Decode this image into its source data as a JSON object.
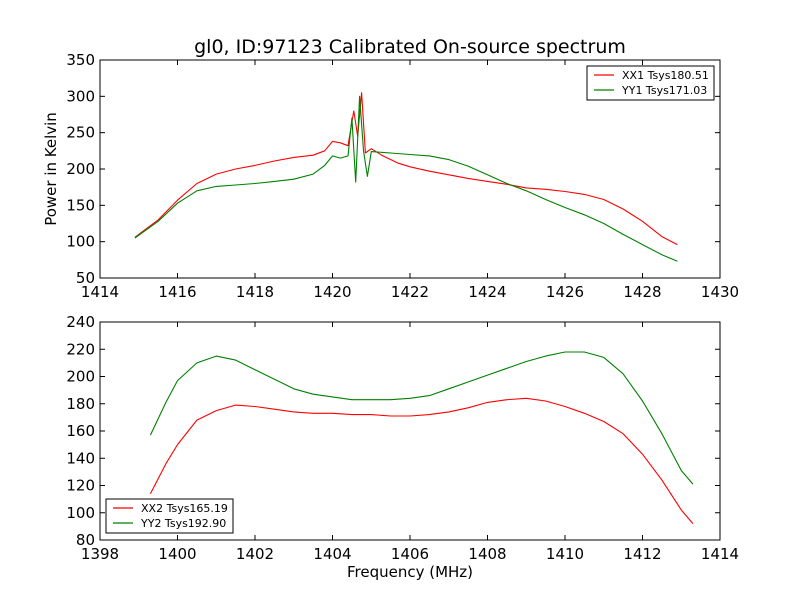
{
  "chart_data": [
    {
      "type": "line",
      "title": "gl0, ID:97123 Calibrated On-source spectrum",
      "xlabel": "",
      "ylabel": "Power in Kelvin",
      "xlim": [
        1414,
        1430
      ],
      "ylim": [
        50,
        350
      ],
      "xticks": [
        "1414",
        "1416",
        "1418",
        "1420",
        "1422",
        "1424",
        "1426",
        "1428",
        "1430"
      ],
      "yticks": [
        "50",
        "100",
        "150",
        "200",
        "250",
        "300",
        "350"
      ],
      "grid": false,
      "legend_position": "top-right",
      "series": [
        {
          "name": "XX1 Tsys180.51",
          "color": "#ff0000",
          "x": [
            1414.9,
            1415.5,
            1416.0,
            1416.5,
            1417.0,
            1417.5,
            1418.0,
            1418.5,
            1419.0,
            1419.5,
            1419.8,
            1420.0,
            1420.2,
            1420.4,
            1420.55,
            1420.65,
            1420.75,
            1420.85,
            1421.0,
            1421.3,
            1421.7,
            1422.0,
            1422.5,
            1423.0,
            1423.5,
            1424.0,
            1424.5,
            1425.0,
            1425.5,
            1426.0,
            1426.5,
            1427.0,
            1427.5,
            1428.0,
            1428.5,
            1428.9
          ],
          "y": [
            106,
            130,
            157,
            180,
            193,
            200,
            205,
            211,
            216,
            219,
            225,
            238,
            236,
            232,
            280,
            245,
            305,
            222,
            228,
            218,
            208,
            203,
            197,
            192,
            187,
            183,
            179,
            174,
            172,
            169,
            165,
            158,
            145,
            128,
            107,
            96
          ]
        },
        {
          "name": "YY1 Tsys171.03",
          "color": "#008000",
          "x": [
            1414.9,
            1415.5,
            1416.0,
            1416.5,
            1417.0,
            1417.5,
            1418.0,
            1418.5,
            1419.0,
            1419.5,
            1419.8,
            1420.0,
            1420.2,
            1420.4,
            1420.5,
            1420.6,
            1420.7,
            1420.8,
            1420.9,
            1421.0,
            1421.5,
            1422.0,
            1422.5,
            1423.0,
            1423.5,
            1424.0,
            1424.5,
            1425.0,
            1425.5,
            1426.0,
            1426.5,
            1427.0,
            1427.5,
            1428.0,
            1428.5,
            1428.9
          ],
          "y": [
            105,
            128,
            153,
            170,
            176,
            178,
            180,
            183,
            186,
            193,
            205,
            218,
            215,
            218,
            270,
            182,
            300,
            225,
            190,
            224,
            222,
            220,
            218,
            213,
            204,
            192,
            180,
            170,
            158,
            147,
            137,
            125,
            110,
            96,
            82,
            73
          ]
        }
      ]
    },
    {
      "type": "line",
      "title": "",
      "xlabel": "Frequency (MHz)",
      "ylabel": "",
      "xlim": [
        1398,
        1414
      ],
      "ylim": [
        80,
        240
      ],
      "xticks": [
        "1398",
        "1400",
        "1402",
        "1404",
        "1406",
        "1408",
        "1410",
        "1412",
        "1414"
      ],
      "yticks": [
        "80",
        "100",
        "120",
        "140",
        "160",
        "180",
        "200",
        "220",
        "240"
      ],
      "grid": false,
      "legend_position": "bottom-left",
      "series": [
        {
          "name": "XX2 Tsys165.19",
          "color": "#ff0000",
          "x": [
            1399.3,
            1399.7,
            1400.0,
            1400.5,
            1401.0,
            1401.5,
            1402.0,
            1402.5,
            1403.0,
            1403.5,
            1404.0,
            1404.5,
            1405.0,
            1405.5,
            1406.0,
            1406.5,
            1407.0,
            1407.5,
            1408.0,
            1408.5,
            1409.0,
            1409.5,
            1410.0,
            1410.5,
            1411.0,
            1411.5,
            1412.0,
            1412.5,
            1413.0,
            1413.3
          ],
          "y": [
            114,
            136,
            150,
            168,
            175,
            179,
            178,
            176,
            174,
            173,
            173,
            172,
            172,
            171,
            171,
            172,
            174,
            177,
            181,
            183,
            184,
            182,
            178,
            173,
            167,
            158,
            143,
            124,
            102,
            92
          ]
        },
        {
          "name": "YY2 Tsys192.90",
          "color": "#008000",
          "x": [
            1399.3,
            1399.7,
            1400.0,
            1400.5,
            1401.0,
            1401.5,
            1402.0,
            1402.5,
            1403.0,
            1403.5,
            1404.0,
            1404.5,
            1405.0,
            1405.5,
            1406.0,
            1406.5,
            1407.0,
            1407.5,
            1408.0,
            1408.5,
            1409.0,
            1409.5,
            1410.0,
            1410.5,
            1411.0,
            1411.5,
            1412.0,
            1412.5,
            1413.0,
            1413.3
          ],
          "y": [
            157,
            181,
            197,
            210,
            215,
            212,
            205,
            198,
            191,
            187,
            185,
            183,
            183,
            183,
            184,
            186,
            191,
            196,
            201,
            206,
            211,
            215,
            218,
            218,
            214,
            202,
            182,
            158,
            131,
            121
          ]
        }
      ]
    }
  ]
}
